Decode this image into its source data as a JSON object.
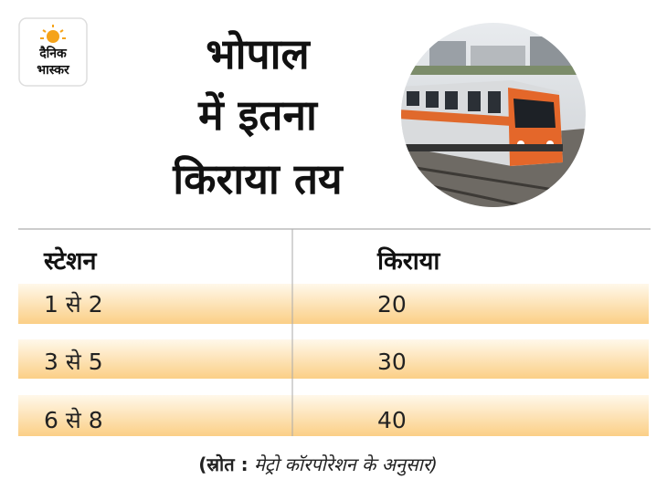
{
  "logo": {
    "line1": "दैनिक",
    "line2": "भास्कर"
  },
  "title": [
    "भोपाल",
    "में इतना",
    "किराया तय"
  ],
  "table": {
    "header": [
      "स्टेशन",
      "किराया"
    ],
    "rows": [
      [
        "1 से 2",
        20
      ],
      [
        "3 से 5",
        30
      ],
      [
        "6 से 8",
        40
      ]
    ]
  },
  "footer": {
    "label": "(स्रोत :",
    "text": "मेट्रो कॉरपोरेशन के अनुसार)"
  }
}
